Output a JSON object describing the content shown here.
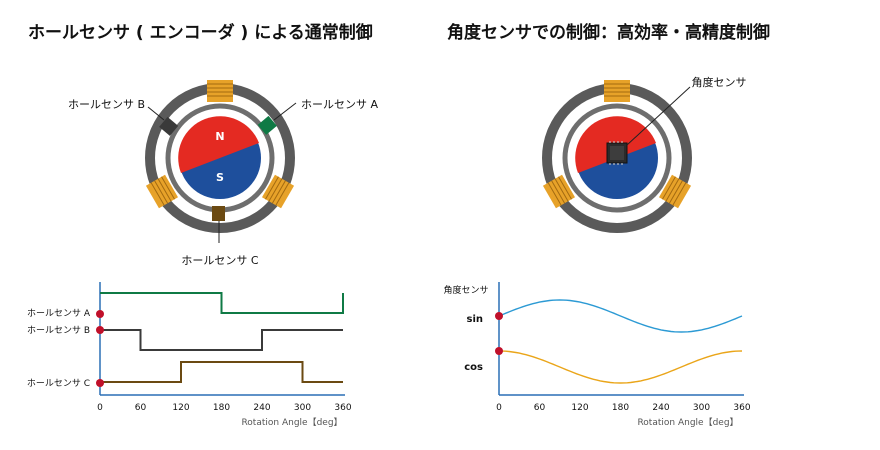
{
  "left": {
    "title": "ホールセンサ ( エンコーダ ) による通常制御",
    "sensor_a_label": "ホールセンサ A",
    "sensor_b_label": "ホールセンサ B",
    "sensor_c_label": "ホールセンサ C",
    "pole_n": "N",
    "pole_s": "S",
    "chart": {
      "series_labels": [
        "ホールセンサ A",
        "ホールセンサ B",
        "ホールセンサ C"
      ],
      "xticks": [
        "0",
        "60",
        "120",
        "180",
        "240",
        "300",
        "360"
      ],
      "xlabel": "Rotation Angle【deg】"
    }
  },
  "right": {
    "title": "角度センサでの制御：高効率・高精度制御",
    "sensor_label": "角度センサ",
    "chart": {
      "ylabel": "角度センサ",
      "series_labels": [
        "sin",
        "cos"
      ],
      "xticks": [
        "0",
        "60",
        "120",
        "180",
        "240",
        "300",
        "360"
      ],
      "xlabel": "Rotation Angle【deg】"
    }
  },
  "colors": {
    "red": "#e42a22",
    "blue": "#1e4f9c",
    "green": "#0f7a45",
    "dark": "#3a3a3a",
    "brown": "#6b4a12",
    "coil": "#e7a229",
    "sin": "#2c9ad4",
    "cos": "#eaa519",
    "marker": "#c0102a",
    "axis": "#2a6fb5"
  },
  "chart_data": [
    {
      "type": "line",
      "x": [
        0,
        60,
        120,
        180,
        240,
        300,
        360
      ],
      "series": [
        {
          "name": "ホールセンサ A",
          "values": [
            1,
            1,
            1,
            0,
            0,
            0,
            1
          ]
        },
        {
          "name": "ホールセンサ B",
          "values": [
            1,
            0,
            0,
            0,
            1,
            1,
            1
          ]
        },
        {
          "name": "ホールセンサ C",
          "values": [
            0,
            0,
            1,
            1,
            1,
            0,
            0
          ]
        }
      ],
      "xlabel": "Rotation Angle【deg】",
      "xlim": [
        0,
        360
      ]
    },
    {
      "type": "line",
      "x": [
        0,
        60,
        120,
        180,
        240,
        300,
        360
      ],
      "series": [
        {
          "name": "sin",
          "values": [
            0,
            0.87,
            0.87,
            0,
            -0.87,
            -0.87,
            0
          ]
        },
        {
          "name": "cos",
          "values": [
            1,
            0.5,
            -0.5,
            -1,
            -0.5,
            0.5,
            1
          ]
        }
      ],
      "xlabel": "Rotation Angle【deg】",
      "ylabel": "角度センサ",
      "xlim": [
        0,
        360
      ]
    }
  ]
}
